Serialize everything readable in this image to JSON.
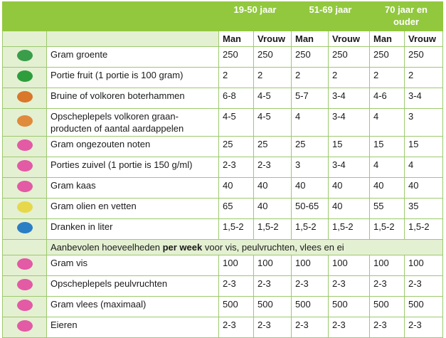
{
  "header": {
    "groups": [
      "19-50 jaar",
      "51-69 jaar",
      "70 jaar en ouder"
    ],
    "sexes": [
      "Man",
      "Vrouw",
      "Man",
      "Vrouw",
      "Man",
      "Vrouw"
    ]
  },
  "daily_rows": [
    {
      "label": "Gram groente",
      "values": [
        "250",
        "250",
        "250",
        "250",
        "250",
        "250"
      ]
    },
    {
      "label": "Portie fruit (1 portie is 100 gram)",
      "values": [
        "2",
        "2",
        "2",
        "2",
        "2",
        "2"
      ]
    },
    {
      "label": "Bruine of volkoren boterhammen",
      "values": [
        "6-8",
        "4-5",
        "5-7",
        "3-4",
        "4-6",
        "3-4"
      ]
    },
    {
      "label": "Opscheplepels volkoren graan-producten of aantal aardappelen",
      "values": [
        "4-5",
        "4-5",
        "4",
        "3-4",
        "4",
        "3"
      ]
    },
    {
      "label": "Gram ongezouten noten",
      "values": [
        "25",
        "25",
        "25",
        "15",
        "15",
        "15"
      ]
    },
    {
      "label": "Porties zuivel (1 portie is 150 g/ml)",
      "values": [
        "2-3",
        "2-3",
        "3",
        "3-4",
        "4",
        "4"
      ]
    },
    {
      "label": "Gram kaas",
      "values": [
        "40",
        "40",
        "40",
        "40",
        "40",
        "40"
      ]
    },
    {
      "label": "Gram olien en vetten",
      "values": [
        "65",
        "40",
        "50-65",
        "40",
        "55",
        "35"
      ]
    },
    {
      "label": "Dranken in liter",
      "values": [
        "1,5-2",
        "1,5-2",
        "1,5-2",
        "1,5-2",
        "1,5-2",
        "1,5-2"
      ]
    }
  ],
  "weekly_note": {
    "before": "Aanbevolen hoeveelheden",
    "bold": "per week",
    "after": "voor vis, peulvruchten, vlees en ei"
  },
  "weekly_rows": [
    {
      "label": "Gram vis",
      "values": [
        "100",
        "100",
        "100",
        "100",
        "100",
        "100"
      ]
    },
    {
      "label": "Opscheplepels peulvruchten",
      "values": [
        "2-3",
        "2-3",
        "2-3",
        "2-3",
        "2-3",
        "2-3"
      ]
    },
    {
      "label": "Gram vlees (maximaal)",
      "values": [
        "500",
        "500",
        "500",
        "500",
        "500",
        "500"
      ]
    },
    {
      "label": "Eieren",
      "values": [
        "2-3",
        "2-3",
        "2-3",
        "2-3",
        "2-3",
        "2-3"
      ]
    }
  ]
}
